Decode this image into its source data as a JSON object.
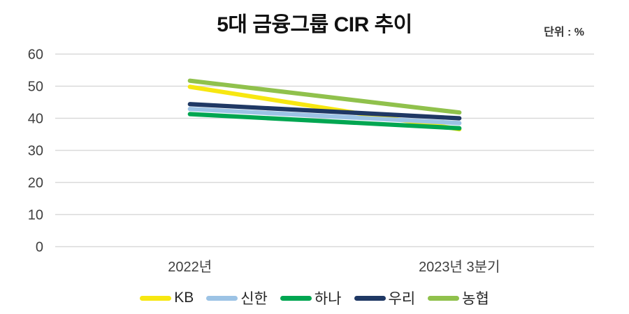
{
  "title": "5대 금융그룹 CIR 추이",
  "unit_label": "단위 : %",
  "chart_data": {
    "type": "line",
    "title": "5대 금융그룹 CIR 추이",
    "unit": "%",
    "categories": [
      "2022년",
      "2023년 3분기"
    ],
    "series": [
      {
        "name": "KB",
        "color": "#F7E711",
        "values": [
          49.8,
          36.6
        ]
      },
      {
        "name": "신한",
        "color": "#9CC3E5",
        "values": [
          42.9,
          38.5
        ]
      },
      {
        "name": "하나",
        "color": "#00A651",
        "values": [
          41.3,
          36.9
        ]
      },
      {
        "name": "우리",
        "color": "#1F3864",
        "values": [
          44.4,
          40.0
        ]
      },
      {
        "name": "농협",
        "color": "#90C14C",
        "values": [
          51.7,
          41.8
        ]
      }
    ],
    "yticks": [
      0,
      10,
      20,
      30,
      40,
      50,
      60
    ],
    "ylim": [
      0,
      60
    ],
    "grid": "horizontal",
    "gridline_color": "#D9D9D9",
    "axis_text_color": "#3F3F3F",
    "legend_position": "bottom"
  }
}
